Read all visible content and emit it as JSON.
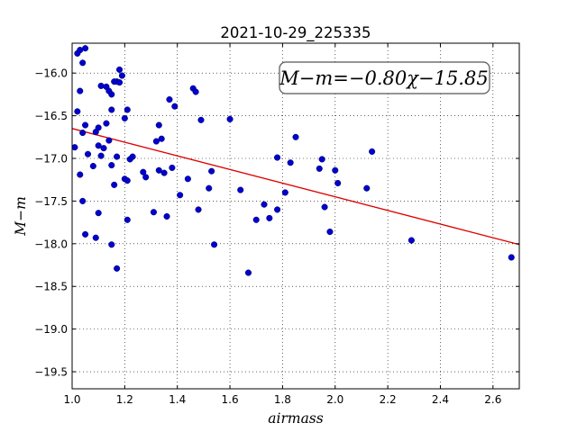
{
  "chart_data": {
    "type": "scatter",
    "title": "2021-10-29_225335",
    "xlabel": "airmass",
    "ylabel": "M−m",
    "xlim": [
      1.0,
      2.7
    ],
    "ylim": [
      -15.65,
      -19.7
    ],
    "y_inverted": true,
    "xticks": [
      1.0,
      1.2,
      1.4,
      1.6,
      1.8,
      2.0,
      2.2,
      2.4,
      2.6
    ],
    "xtick_labels": [
      "1.0",
      "1.2",
      "1.4",
      "1.6",
      "1.8",
      "2.0",
      "2.2",
      "2.4",
      "2.6"
    ],
    "yticks": [
      -16.0,
      -16.5,
      -17.0,
      -17.5,
      -18.0,
      -18.5,
      -19.0,
      -19.5
    ],
    "ytick_labels": [
      "−16.0",
      "−16.5",
      "−17.0",
      "−17.5",
      "−18.0",
      "−18.5",
      "−19.0",
      "−19.5"
    ],
    "grid": true,
    "marker_color": "#0000cc",
    "fit_color": "#dd0000",
    "annotation": "M−m=−0.80χ−15.85",
    "fit": {
      "slope": -0.8,
      "intercept": -15.85
    },
    "points": [
      [
        1.01,
        -16.87
      ],
      [
        1.02,
        -16.45
      ],
      [
        1.02,
        -15.77
      ],
      [
        1.03,
        -15.73
      ],
      [
        1.03,
        -16.21
      ],
      [
        1.03,
        -17.19
      ],
      [
        1.04,
        -15.88
      ],
      [
        1.04,
        -16.7
      ],
      [
        1.04,
        -17.5
      ],
      [
        1.05,
        -15.71
      ],
      [
        1.05,
        -17.89
      ],
      [
        1.05,
        -16.61
      ],
      [
        1.06,
        -16.95
      ],
      [
        1.08,
        -17.09
      ],
      [
        1.09,
        -16.69
      ],
      [
        1.09,
        -17.93
      ],
      [
        1.1,
        -16.64
      ],
      [
        1.1,
        -16.85
      ],
      [
        1.1,
        -17.64
      ],
      [
        1.11,
        -16.15
      ],
      [
        1.11,
        -16.97
      ],
      [
        1.12,
        -16.88
      ],
      [
        1.13,
        -16.16
      ],
      [
        1.13,
        -16.59
      ],
      [
        1.14,
        -16.79
      ],
      [
        1.14,
        -16.21
      ],
      [
        1.15,
        -18.01
      ],
      [
        1.15,
        -16.25
      ],
      [
        1.15,
        -16.43
      ],
      [
        1.15,
        -17.08
      ],
      [
        1.16,
        -17.31
      ],
      [
        1.16,
        -16.1
      ],
      [
        1.17,
        -16.98
      ],
      [
        1.17,
        -18.29
      ],
      [
        1.17,
        -16.1
      ],
      [
        1.18,
        -16.11
      ],
      [
        1.18,
        -15.96
      ],
      [
        1.19,
        -16.03
      ],
      [
        1.2,
        -16.53
      ],
      [
        1.2,
        -17.24
      ],
      [
        1.21,
        -16.43
      ],
      [
        1.21,
        -17.72
      ],
      [
        1.21,
        -17.26
      ],
      [
        1.22,
        -17.01
      ],
      [
        1.23,
        -16.98
      ],
      [
        1.27,
        -17.16
      ],
      [
        1.28,
        -17.22
      ],
      [
        1.31,
        -17.63
      ],
      [
        1.32,
        -16.8
      ],
      [
        1.33,
        -16.61
      ],
      [
        1.33,
        -17.14
      ],
      [
        1.34,
        -16.77
      ],
      [
        1.35,
        -17.17
      ],
      [
        1.36,
        -17.68
      ],
      [
        1.37,
        -16.31
      ],
      [
        1.38,
        -17.11
      ],
      [
        1.39,
        -16.39
      ],
      [
        1.41,
        -17.43
      ],
      [
        1.44,
        -17.24
      ],
      [
        1.46,
        -16.18
      ],
      [
        1.47,
        -16.22
      ],
      [
        1.48,
        -17.6
      ],
      [
        1.49,
        -16.55
      ],
      [
        1.52,
        -17.35
      ],
      [
        1.53,
        -17.15
      ],
      [
        1.54,
        -18.01
      ],
      [
        1.6,
        -16.54
      ],
      [
        1.64,
        -17.37
      ],
      [
        1.67,
        -18.34
      ],
      [
        1.7,
        -17.72
      ],
      [
        1.73,
        -17.54
      ],
      [
        1.75,
        -17.7
      ],
      [
        1.78,
        -17.6
      ],
      [
        1.78,
        -16.99
      ],
      [
        1.81,
        -17.4
      ],
      [
        1.83,
        -17.05
      ],
      [
        1.85,
        -16.75
      ],
      [
        1.94,
        -17.12
      ],
      [
        1.95,
        -17.01
      ],
      [
        1.96,
        -17.57
      ],
      [
        1.98,
        -17.86
      ],
      [
        2.0,
        -17.14
      ],
      [
        2.01,
        -17.29
      ],
      [
        2.12,
        -17.35
      ],
      [
        2.14,
        -16.92
      ],
      [
        2.29,
        -17.96
      ],
      [
        2.67,
        -18.16
      ]
    ]
  }
}
